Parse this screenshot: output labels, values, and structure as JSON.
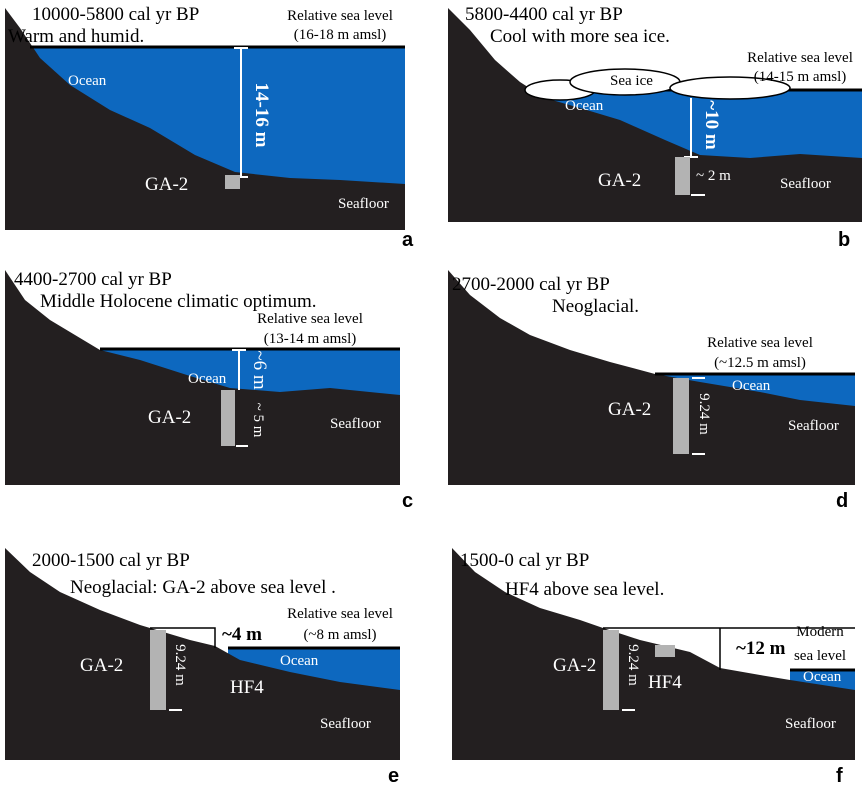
{
  "panels": [
    {
      "period": "10000-5800 cal yr BP",
      "climate": "Warm and humid.",
      "sea_level_label": "Relative sea level",
      "sea_level_value": "(16-18 m amsl)",
      "ocean": "Ocean",
      "depth": "14-16 m",
      "core": "GA-2",
      "seafloor": "Seafloor",
      "letter": "a"
    },
    {
      "period": "5800-4400 cal yr BP",
      "climate": "Cool with more sea ice.",
      "sea_ice": "Sea ice",
      "sea_level_label": "Relative sea level",
      "sea_level_value": "(14-15 m amsl)",
      "ocean": "Ocean",
      "depth": "~10 m",
      "core": "GA-2",
      "core_length": "~ 2 m",
      "seafloor": "Seafloor",
      "letter": "b"
    },
    {
      "period": "4400-2700 cal yr BP",
      "climate": "Middle Holocene climatic optimum.",
      "sea_level_label": "Relative sea level",
      "sea_level_value": "(13-14 m amsl)",
      "ocean": "Ocean",
      "depth": "~6 m",
      "core": "GA-2",
      "core_length": "~ 5 m",
      "seafloor": "Seafloor",
      "letter": "c"
    },
    {
      "period": "2700-2000 cal yr BP",
      "climate": "Neoglacial.",
      "sea_level_label": "Relative sea level",
      "sea_level_value": "(~12.5 m amsl)",
      "ocean": "Ocean",
      "core": "GA-2",
      "core_length": "9.24 m",
      "seafloor": "Seafloor",
      "letter": "d"
    },
    {
      "period": "2000-1500 cal yr BP",
      "climate": "Neoglacial: GA-2 above  sea level .",
      "sea_level_label": "Relative sea level",
      "sea_level_value": "(~8 m amsl)",
      "height": "~4 m",
      "ocean": "Ocean",
      "core": "GA-2",
      "core_length": "9.24 m",
      "second_core": "HF4",
      "seafloor": "Seafloor",
      "letter": "e"
    },
    {
      "period": "1500-0 cal yr BP",
      "climate": "HF4 above sea level.",
      "sea_level_label": "Modern",
      "sea_level_value": "sea level",
      "height": "~12 m",
      "ocean": "Ocean",
      "core": "GA-2",
      "core_length": "9.24 m",
      "second_core": "HF4",
      "seafloor": "Seafloor",
      "letter": "f"
    }
  ]
}
